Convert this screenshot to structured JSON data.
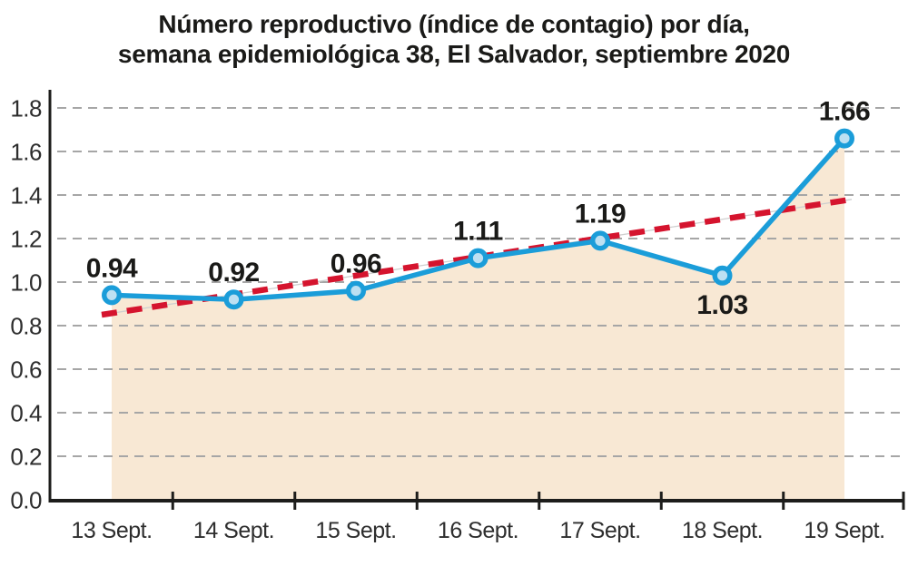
{
  "chart_data": {
    "type": "line",
    "title": "Número reproductivo (índice de contagio) por día, semana epidemiológica 38, El Salvador, septiembre 2020",
    "title_lines": [
      "Número reproductivo (índice de contagio) por día,",
      "semana epidemiológica 38, El Salvador, septiembre 2020"
    ],
    "categories": [
      "13 Sept.",
      "14 Sept.",
      "15 Sept.",
      "16 Sept.",
      "17 Sept.",
      "18 Sept.",
      "19 Sept."
    ],
    "series": [
      {
        "name": "numero-reproductivo-diario",
        "kind": "line-area-markers",
        "values": [
          0.94,
          0.92,
          0.96,
          1.11,
          1.19,
          1.03,
          1.66
        ],
        "data_labels": [
          "0.94",
          "0.92",
          "0.96",
          "1.11",
          "1.19",
          "1.03",
          "1.66"
        ],
        "label_positions": [
          "above",
          "above",
          "above",
          "above",
          "above",
          "below",
          "above"
        ]
      },
      {
        "name": "tendencia",
        "kind": "dashed-trend",
        "start_value": 0.85,
        "end_value": 1.38
      }
    ],
    "y_ticks": [
      "0.0",
      "0.2",
      "0.4",
      "0.6",
      "0.8",
      "1.0",
      "1.2",
      "1.4",
      "1.6",
      "1.8"
    ],
    "ylim": [
      0.0,
      1.8
    ],
    "xlabel": "",
    "ylabel": "",
    "grid": "dashed-horizontal",
    "legend": "none",
    "colors": {
      "line": "#1b9dd9",
      "marker_ring": "#1b9dd9",
      "marker_fill": "#bde0f2",
      "area_fill": "#f8e8d4",
      "trend": "#d5142e",
      "trend_underlay": "#cfcfcf",
      "gridline": "#a6a6a6",
      "axis": "#1d1d1b",
      "tick_text": "#2e2e2e",
      "label_text": "#1a1a18"
    }
  }
}
